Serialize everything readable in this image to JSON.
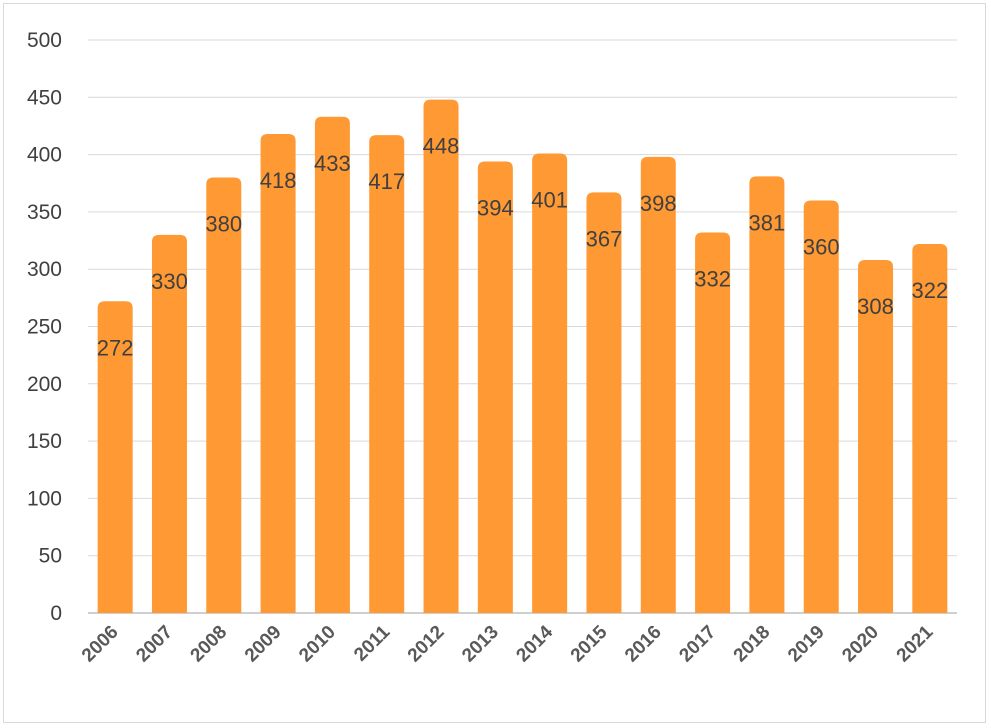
{
  "chart_data": {
    "type": "bar",
    "title": "",
    "xlabel": "",
    "ylabel": "",
    "categories": [
      "2006",
      "2007",
      "2008",
      "2009",
      "2010",
      "2011",
      "2012",
      "2013",
      "2014",
      "2015",
      "2016",
      "2017",
      "2018",
      "2019",
      "2020",
      "2021"
    ],
    "values": [
      272,
      330,
      380,
      418,
      433,
      417,
      448,
      394,
      401,
      367,
      398,
      332,
      381,
      360,
      308,
      322
    ],
    "ylim": [
      0,
      500
    ],
    "yticks": [
      0,
      50,
      100,
      150,
      200,
      250,
      300,
      350,
      400,
      450,
      500
    ],
    "grid": true,
    "legend": "none",
    "data_labels": true,
    "bar_color": "#FF9933",
    "label_color": "#404040"
  }
}
